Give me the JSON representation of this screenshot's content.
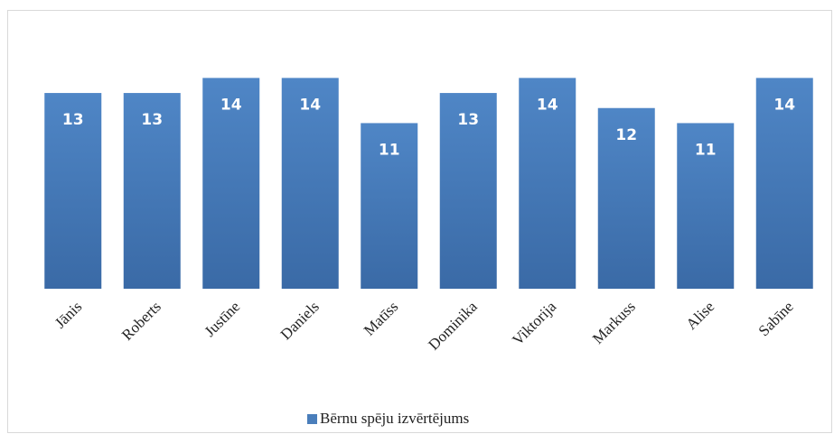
{
  "chart_data": {
    "type": "bar",
    "categories": [
      "Jānis",
      "Roberts",
      "Justīne",
      "Daniels",
      "Matīss",
      "Dominika",
      "Viktorija",
      "Markuss",
      "Alise",
      "Sabīne"
    ],
    "series": [
      {
        "name": "Bērnu spēju izvērtējums",
        "color": "#4a7ebb",
        "values": [
          13,
          13,
          14,
          14,
          11,
          13,
          14,
          12,
          11,
          14
        ]
      }
    ],
    "ylim": [
      0,
      16
    ],
    "grid": false,
    "legend": "bottom"
  }
}
